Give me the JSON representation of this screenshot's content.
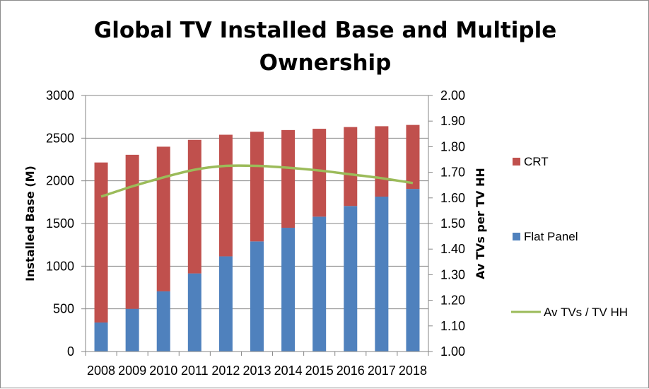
{
  "colors": {
    "crt": "#c0504d",
    "flat_panel": "#4f81bd",
    "line": "#9bbb59",
    "grid": "#868686"
  },
  "chart_data": {
    "type": "bar",
    "stacked": true,
    "title": "Global TV Installed Base and Multiple Ownership",
    "title_lines": [
      "Global TV Installed Base and Multiple",
      "Ownership"
    ],
    "categories": [
      "2008",
      "2009",
      "2010",
      "2011",
      "2012",
      "2013",
      "2014",
      "2015",
      "2016",
      "2017",
      "2018"
    ],
    "ylabel": "Installed Base (M)",
    "y2label": "Av TVs per TV HH",
    "ylim": [
      0,
      3000
    ],
    "y2lim": [
      1.0,
      2.0
    ],
    "yticks": [
      "0",
      "500",
      "1000",
      "1500",
      "2000",
      "2500",
      "3000"
    ],
    "y2ticks": [
      "1.00",
      "1.10",
      "1.20",
      "1.30",
      "1.40",
      "1.50",
      "1.60",
      "1.70",
      "1.80",
      "1.90",
      "2.00"
    ],
    "grid": true,
    "legend_position": "right",
    "series": [
      {
        "name": "Flat Panel",
        "type": "bar",
        "axis": "left",
        "values": [
          340,
          500,
          705,
          915,
          1115,
          1290,
          1450,
          1580,
          1705,
          1815,
          1905
        ]
      },
      {
        "name": "CRT",
        "type": "bar",
        "axis": "left",
        "values": [
          1875,
          1805,
          1695,
          1565,
          1425,
          1285,
          1145,
          1030,
          925,
          825,
          750
        ]
      },
      {
        "name": "Av TVs / TV HH",
        "type": "line",
        "axis": "right",
        "values": [
          1.605,
          1.645,
          1.68,
          1.71,
          1.725,
          1.725,
          1.718,
          1.707,
          1.692,
          1.677,
          1.658
        ]
      }
    ],
    "legend": [
      "CRT",
      "Flat Panel",
      "Av TVs / TV HH"
    ]
  }
}
